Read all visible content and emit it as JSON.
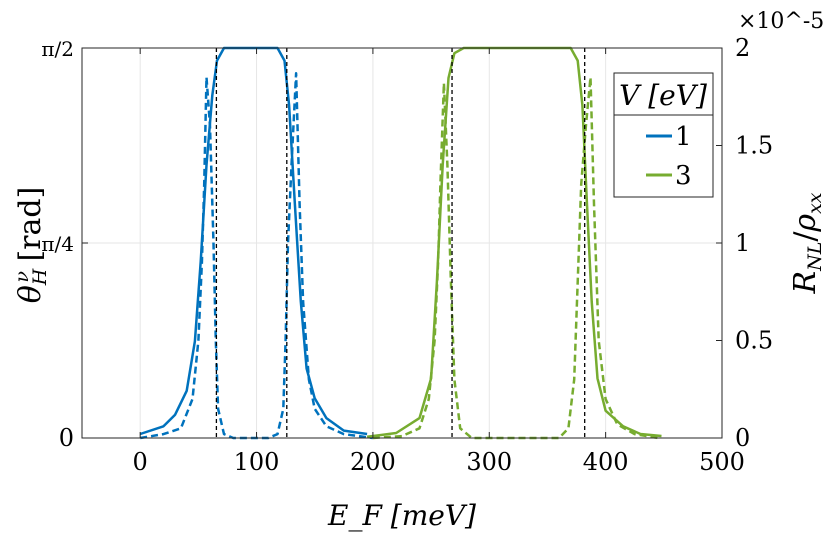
{
  "chart_data": {
    "type": "line",
    "xlabel": "E_F [meV]",
    "ylabel_left": "θ_H^ν [rad]",
    "ylabel_right": "R_NL/ρ_xx",
    "right_exponent": "×10^-5",
    "xlim": [
      -50,
      500
    ],
    "ylim_left": [
      0,
      1.5708
    ],
    "ylim_right": [
      0,
      2
    ],
    "xticks": [
      0,
      100,
      200,
      300,
      400,
      500
    ],
    "xtick_labels": [
      "0",
      "100",
      "200",
      "300",
      "400",
      "500"
    ],
    "yticks_left": [
      0,
      0.7854,
      1.5708
    ],
    "ytick_labels_left": [
      "0",
      "π/4",
      "π/2"
    ],
    "yticks_right": [
      0,
      0.5,
      1,
      1.5,
      2
    ],
    "ytick_labels_right": [
      "0",
      "0.5",
      "1",
      "1.5",
      "2"
    ],
    "grid": true,
    "legend": {
      "title": "V [eV]",
      "placement": "top-right",
      "entries": [
        "1",
        "3"
      ]
    },
    "colors": {
      "V1": "#0072BD",
      "V3": "#77AC30",
      "vlines": "#000000"
    },
    "vlines": [
      65.5,
      126,
      268,
      382
    ],
    "series": [
      {
        "name": "1",
        "axis": "left",
        "style": "solid",
        "color": "#0072BD",
        "x": [
          0,
          20,
          30,
          40,
          47,
          52,
          57,
          62,
          66,
          72,
          118,
          124,
          128,
          133,
          138,
          143,
          150,
          160,
          175,
          195
        ],
        "y": [
          0.016,
          0.047,
          0.094,
          0.19,
          0.39,
          0.71,
          1.1,
          1.38,
          1.52,
          1.5708,
          1.5708,
          1.52,
          1.34,
          0.94,
          0.55,
          0.28,
          0.16,
          0.08,
          0.03,
          0.016
        ]
      },
      {
        "name": "1",
        "axis": "right",
        "style": "dashed",
        "color": "#0072BD",
        "x": [
          0,
          20,
          35,
          45,
          50,
          53,
          55,
          57,
          60,
          63,
          65,
          67,
          72,
          80,
          110,
          118,
          123,
          125,
          127,
          130,
          134,
          137,
          140,
          145,
          150,
          160,
          175,
          200
        ],
        "y": [
          0,
          0.02,
          0.05,
          0.2,
          0.5,
          0.9,
          1.3,
          1.85,
          1.6,
          1.0,
          0.5,
          0.15,
          0.02,
          0,
          0,
          0.02,
          0.15,
          0.5,
          1.0,
          1.4,
          1.87,
          1.2,
          0.7,
          0.3,
          0.15,
          0.06,
          0.02,
          0
        ]
      },
      {
        "name": "3",
        "axis": "left",
        "style": "solid",
        "color": "#77AC30",
        "x": [
          195,
          220,
          240,
          250,
          255,
          260,
          265,
          270,
          278,
          370,
          376,
          380,
          384,
          388,
          393,
          400,
          415,
          430,
          448
        ],
        "y": [
          0.005,
          0.02,
          0.08,
          0.24,
          0.63,
          1.1,
          1.45,
          1.55,
          1.5708,
          1.5708,
          1.52,
          1.34,
          0.94,
          0.55,
          0.24,
          0.11,
          0.047,
          0.016,
          0.008
        ]
      },
      {
        "name": "3",
        "axis": "right",
        "style": "dashed",
        "color": "#77AC30",
        "x": [
          200,
          225,
          240,
          248,
          253,
          256,
          258,
          261,
          264,
          267,
          270,
          275,
          285,
          360,
          368,
          373,
          376,
          379,
          383,
          387,
          390,
          394,
          400,
          410,
          425,
          445
        ],
        "y": [
          0,
          0.01,
          0.05,
          0.2,
          0.5,
          0.9,
          1.3,
          1.82,
          1.4,
          0.8,
          0.3,
          0.05,
          0,
          0,
          0.05,
          0.3,
          0.8,
          1.3,
          1.6,
          1.85,
          1.2,
          0.5,
          0.2,
          0.07,
          0.02,
          0
        ]
      }
    ]
  }
}
